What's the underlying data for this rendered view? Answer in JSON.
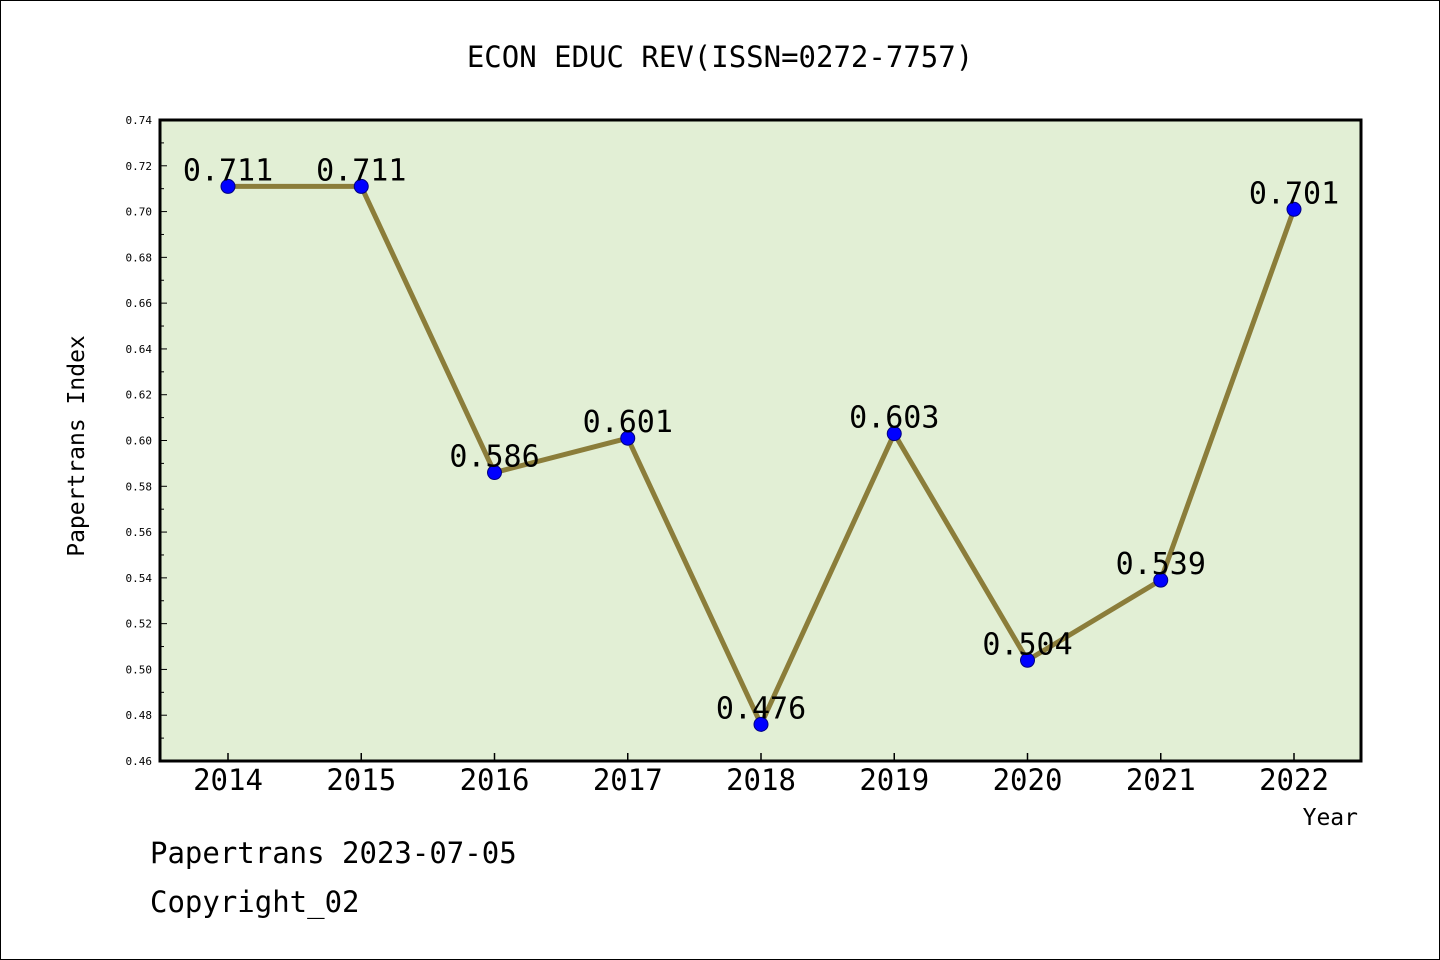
{
  "chart_data": {
    "type": "line",
    "title": "ECON EDUC REV(ISSN=0272-7757)",
    "xlabel": "Year",
    "ylabel": "Papertrans Index",
    "categories": [
      "2014",
      "2015",
      "2016",
      "2017",
      "2018",
      "2019",
      "2020",
      "2021",
      "2022"
    ],
    "series": [
      {
        "values": [
          0.711,
          0.711,
          0.586,
          0.601,
          0.476,
          0.603,
          0.504,
          0.539,
          0.701
        ],
        "data_labels": [
          "0.711",
          "0.711",
          "0.586",
          "0.601",
          "0.476",
          "0.603",
          "0.504",
          "0.539",
          "0.701"
        ]
      }
    ],
    "ylim": [
      0.46,
      0.74
    ],
    "yticks": [
      "0.46",
      "0.48",
      "0.50",
      "0.52",
      "0.54",
      "0.56",
      "0.58",
      "0.60",
      "0.62",
      "0.64",
      "0.66",
      "0.68",
      "0.70",
      "0.72",
      "0.74"
    ],
    "grid": false,
    "colors": {
      "plot_background": "#e2efd5",
      "line": "#8b7d3a",
      "marker": "#0000ff",
      "axis": "#000000"
    }
  },
  "footer": {
    "line1": "Papertrans 2023-07-05",
    "line2": "Copyright_02"
  }
}
